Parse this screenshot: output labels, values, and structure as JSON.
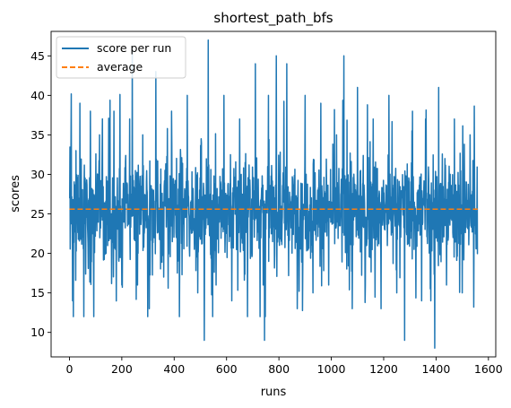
{
  "chart_data": {
    "type": "line",
    "title": "shortest_path_bfs",
    "xlabel": "runs",
    "ylabel": "scores",
    "xlim": [
      -70,
      1628
    ],
    "ylim": [
      6.9,
      48.1
    ],
    "xticks": [
      0,
      200,
      400,
      600,
      800,
      1000,
      1200,
      1400,
      1600
    ],
    "yticks": [
      10,
      15,
      20,
      25,
      30,
      35,
      40,
      45
    ],
    "grid": false,
    "legend_position": "top-left",
    "series": [
      {
        "name": "score per run",
        "kind": "line",
        "color": "#1f77b4",
        "n_points": 1560,
        "x_range": [
          0,
          1559
        ],
        "y_range": [
          8,
          47
        ],
        "mean": 25.6,
        "typical_band": [
          18,
          35
        ],
        "sampled_points": [
          [
            0,
            27
          ],
          [
            6,
            34
          ],
          [
            12,
            14
          ],
          [
            25,
            33
          ],
          [
            40,
            39
          ],
          [
            55,
            12
          ],
          [
            80,
            38
          ],
          [
            93,
            12
          ],
          [
            115,
            35
          ],
          [
            140,
            20
          ],
          [
            170,
            38
          ],
          [
            200,
            16
          ],
          [
            230,
            37
          ],
          [
            240,
            46
          ],
          [
            260,
            16
          ],
          [
            280,
            35
          ],
          [
            305,
            13
          ],
          [
            330,
            43
          ],
          [
            360,
            17
          ],
          [
            390,
            38
          ],
          [
            420,
            12
          ],
          [
            450,
            40
          ],
          [
            490,
            15
          ],
          [
            515,
            9
          ],
          [
            530,
            47
          ],
          [
            560,
            16
          ],
          [
            590,
            40
          ],
          [
            620,
            14
          ],
          [
            650,
            37
          ],
          [
            680,
            12
          ],
          [
            710,
            44
          ],
          [
            740,
            16
          ],
          [
            745,
            9
          ],
          [
            760,
            40
          ],
          [
            790,
            45
          ],
          [
            830,
            44
          ],
          [
            870,
            13
          ],
          [
            900,
            40
          ],
          [
            930,
            15
          ],
          [
            960,
            39
          ],
          [
            990,
            16
          ],
          [
            1020,
            35
          ],
          [
            1048,
            45
          ],
          [
            1080,
            13
          ],
          [
            1100,
            41
          ],
          [
            1130,
            16
          ],
          [
            1160,
            37
          ],
          [
            1190,
            13
          ],
          [
            1220,
            40
          ],
          [
            1250,
            15
          ],
          [
            1280,
            9
          ],
          [
            1310,
            38
          ],
          [
            1345,
            14
          ],
          [
            1360,
            37
          ],
          [
            1380,
            14
          ],
          [
            1395,
            8
          ],
          [
            1410,
            41
          ],
          [
            1440,
            16
          ],
          [
            1470,
            37
          ],
          [
            1500,
            15
          ],
          [
            1530,
            35
          ],
          [
            1559,
            20
          ]
        ]
      },
      {
        "name": "average",
        "kind": "line",
        "style": "dashed",
        "color": "#ff7f0e",
        "x": [
          0,
          1559
        ],
        "y": [
          25.6,
          25.6
        ]
      }
    ]
  }
}
